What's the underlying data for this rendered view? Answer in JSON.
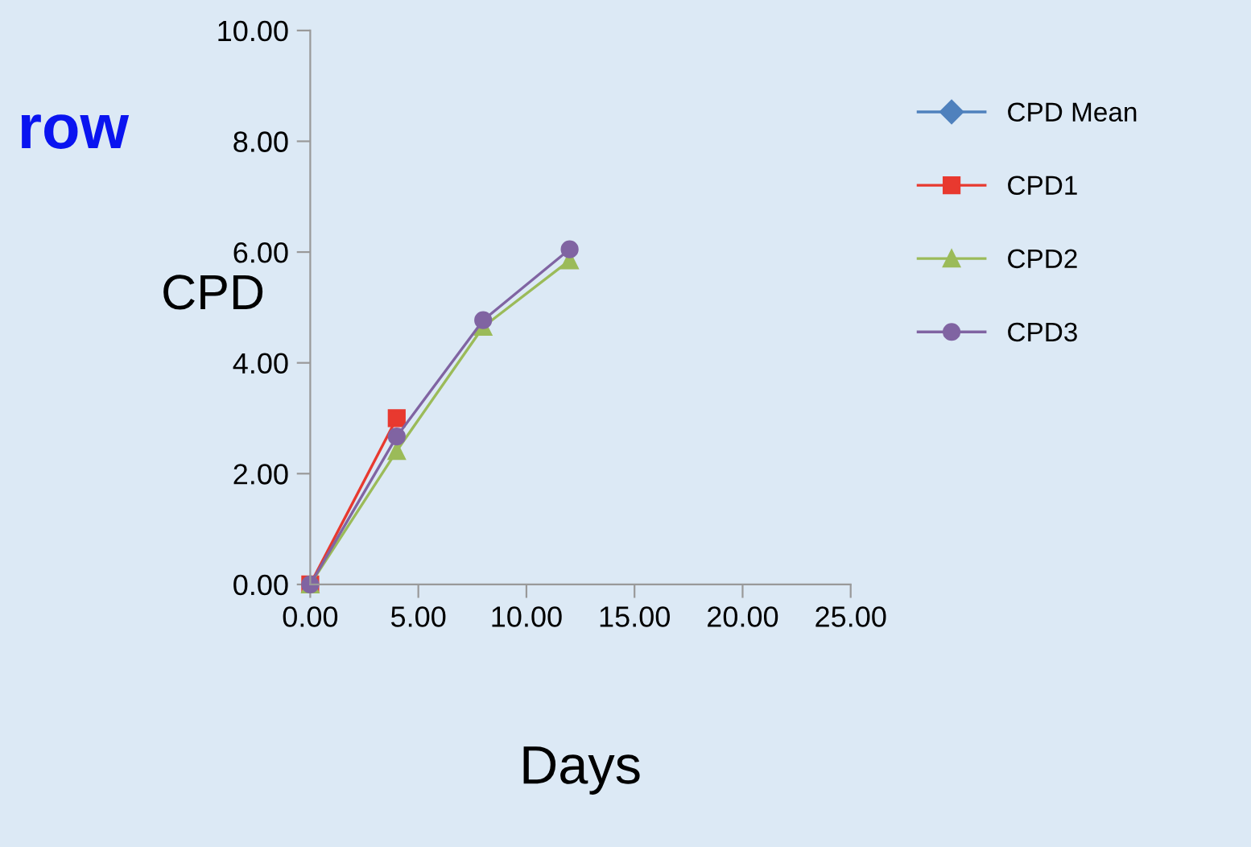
{
  "chart_data": {
    "type": "line",
    "xlabel": "Days",
    "ylabel": "CPD",
    "annotations": [
      "row"
    ],
    "x": [
      0,
      4,
      8,
      12
    ],
    "series": [
      {
        "name": "CPD Mean",
        "color": "#4f81bd",
        "marker": "diamond",
        "values": [
          null,
          null,
          null,
          null
        ]
      },
      {
        "name": "CPD1",
        "color": "#e8392f",
        "marker": "square",
        "values": [
          0,
          3.0,
          null,
          null
        ]
      },
      {
        "name": "CPD2",
        "color": "#9bbb59",
        "marker": "triangle",
        "values": [
          0,
          2.41,
          4.65,
          5.85
        ]
      },
      {
        "name": "CPD3",
        "color": "#8064a2",
        "marker": "circle",
        "values": [
          0,
          2.67,
          4.77,
          6.05
        ]
      }
    ],
    "xlim": [
      0,
      25
    ],
    "xticks": [
      {
        "value": 0,
        "label": "0.00"
      },
      {
        "value": 5,
        "label": "5.00"
      },
      {
        "value": 10,
        "label": "10.00"
      },
      {
        "value": 15,
        "label": "15.00"
      },
      {
        "value": 20,
        "label": "20.00"
      },
      {
        "value": 25,
        "label": "25.00"
      }
    ],
    "ylim": [
      0,
      10
    ],
    "yticks": [
      {
        "value": 0,
        "label": "0.00"
      },
      {
        "value": 2,
        "label": "2.00"
      },
      {
        "value": 4,
        "label": "4.00"
      },
      {
        "value": 6,
        "label": "6.00"
      },
      {
        "value": 8,
        "label": "8.00"
      },
      {
        "value": 10,
        "label": "10.00"
      }
    ],
    "grid": false,
    "legend": "right",
    "line_style": "solid"
  }
}
